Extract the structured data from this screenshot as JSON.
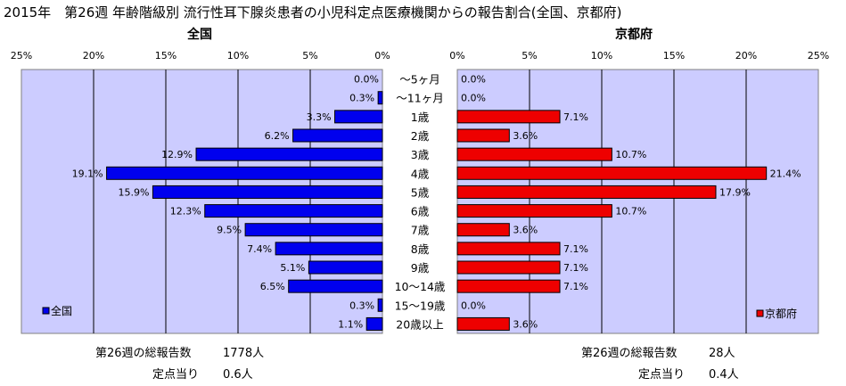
{
  "title": "2015年　第26週 年齢階級別 流行性耳下腺炎患者の小児科定点医療機関からの報告割合(全国、京都府)",
  "colors": {
    "left_bar": "#0000ee",
    "right_bar": "#ee0000",
    "plot_bg": "#ccccff",
    "bar_edge": "#000000"
  },
  "chart_data": [
    {
      "panel": "left",
      "type": "bar",
      "orientation": "horizontal",
      "direction": "right-to-left",
      "title": "全国",
      "legend": "全国",
      "legend_position": "bottom-left",
      "xlim": [
        0,
        25
      ],
      "ticks": [
        "0%",
        "5%",
        "10%",
        "15%",
        "20%",
        "25%"
      ],
      "tick_values": [
        0,
        5,
        10,
        15,
        20,
        25
      ],
      "grid": true,
      "categories": [
        "～5ヶ月",
        "～11ヶ月",
        "1歳",
        "2歳",
        "3歳",
        "4歳",
        "5歳",
        "6歳",
        "7歳",
        "8歳",
        "9歳",
        "10～14歳",
        "15～19歳",
        "20歳以上"
      ],
      "values": [
        0.0,
        0.3,
        3.3,
        6.2,
        12.9,
        19.1,
        15.9,
        12.3,
        9.5,
        7.4,
        5.1,
        6.5,
        0.3,
        1.1
      ],
      "labels": [
        "0.0%",
        "0.3%",
        "3.3%",
        "6.2%",
        "12.9%",
        "19.1%",
        "15.9%",
        "12.3%",
        "9.5%",
        "7.4%",
        "5.1%",
        "6.5%",
        "0.3%",
        "1.1%"
      ]
    },
    {
      "panel": "right",
      "type": "bar",
      "orientation": "horizontal",
      "direction": "left-to-right",
      "title": "京都府",
      "legend": "京都府",
      "legend_position": "bottom-right",
      "xlim": [
        0,
        25
      ],
      "ticks": [
        "0%",
        "5%",
        "10%",
        "15%",
        "20%",
        "25%"
      ],
      "tick_values": [
        0,
        5,
        10,
        15,
        20,
        25
      ],
      "grid": true,
      "categories": [
        "～5ヶ月",
        "～11ヶ月",
        "1歳",
        "2歳",
        "3歳",
        "4歳",
        "5歳",
        "6歳",
        "7歳",
        "8歳",
        "9歳",
        "10～14歳",
        "15～19歳",
        "20歳以上"
      ],
      "values": [
        0.0,
        0.0,
        7.1,
        3.6,
        10.7,
        21.4,
        17.9,
        10.7,
        3.6,
        7.1,
        7.1,
        7.1,
        0.0,
        3.6
      ],
      "labels": [
        "0.0%",
        "0.0%",
        "7.1%",
        "3.6%",
        "10.7%",
        "21.4%",
        "17.9%",
        "10.7%",
        "3.6%",
        "7.1%",
        "7.1%",
        "7.1%",
        "0.0%",
        "3.6%"
      ]
    }
  ],
  "footer": {
    "left": {
      "total_label": "第26週の総報告数",
      "total_value": "1778人",
      "per_label": "定点当り",
      "per_value": "0.6人"
    },
    "right": {
      "total_label": "第26週の総報告数",
      "total_value": "28人",
      "per_label": "定点当り",
      "per_value": "0.4人"
    }
  }
}
